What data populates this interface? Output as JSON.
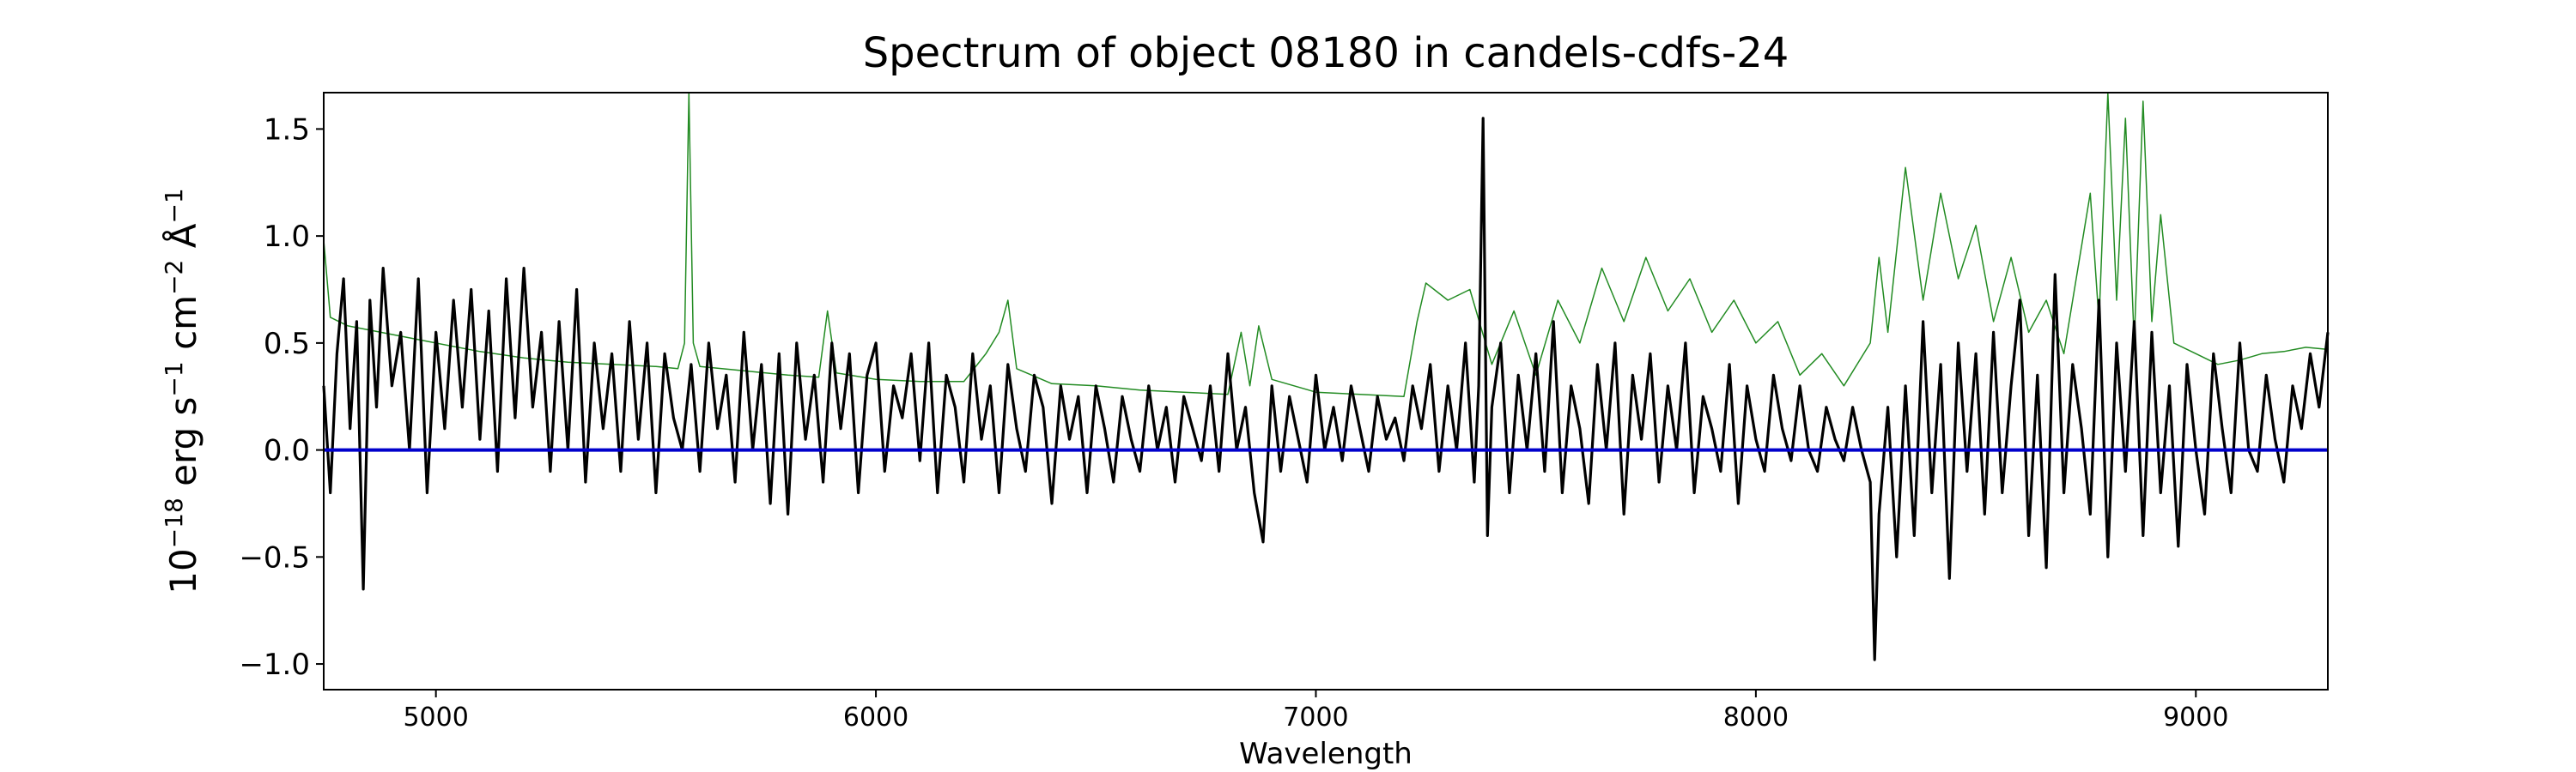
{
  "chart_data": {
    "type": "line",
    "title": "Spectrum of object 08180 in candels-cdfs-24",
    "xlabel": "Wavelength",
    "ylabel": {
      "prefix": "10",
      "exp": "−18",
      "unit1": " erg s",
      "exp2": "−1",
      "unit2": " cm",
      "exp3": "−2",
      "unit3": " Å",
      "exp4": "−1"
    },
    "xlim": [
      4745,
      9300
    ],
    "ylim": [
      -1.12,
      1.67
    ],
    "x_ticks": [
      5000,
      6000,
      7000,
      8000,
      9000
    ],
    "x_tick_labels": [
      "5000",
      "6000",
      "7000",
      "8000",
      "9000"
    ],
    "y_ticks": [
      1.5,
      1.0,
      0.5,
      0.0,
      -0.5,
      -1.0
    ],
    "y_tick_labels": [
      "1.5",
      "1.0",
      "0.5",
      "0.0",
      "−0.5",
      "−1.0"
    ],
    "grid": false,
    "colors": {
      "flux": "#000000",
      "error": "#228B22",
      "zero": "#0000cc"
    },
    "series": [
      {
        "key": "error",
        "color": "#228B22",
        "x": [
          4745,
          4760,
          4780,
          4800,
          4850,
          4900,
          5000,
          5100,
          5200,
          5300,
          5400,
          5500,
          5550,
          5565,
          5575,
          5585,
          5600,
          5700,
          5800,
          5870,
          5890,
          5910,
          6000,
          6100,
          6200,
          6250,
          6280,
          6300,
          6320,
          6400,
          6500,
          6600,
          6700,
          6800,
          6830,
          6850,
          6870,
          6900,
          7000,
          7100,
          7200,
          7230,
          7250,
          7300,
          7350,
          7400,
          7450,
          7500,
          7550,
          7600,
          7650,
          7700,
          7750,
          7800,
          7850,
          7900,
          7950,
          8000,
          8050,
          8100,
          8150,
          8200,
          8260,
          8280,
          8300,
          8340,
          8380,
          8420,
          8460,
          8500,
          8540,
          8580,
          8620,
          8660,
          8700,
          8760,
          8780,
          8800,
          8820,
          8840,
          8860,
          8880,
          8900,
          8920,
          8950,
          9000,
          9050,
          9100,
          9150,
          9200,
          9250,
          9300
        ],
        "y": [
          0.98,
          0.62,
          0.6,
          0.58,
          0.56,
          0.54,
          0.5,
          0.46,
          0.43,
          0.41,
          0.4,
          0.39,
          0.38,
          0.5,
          1.67,
          0.5,
          0.39,
          0.37,
          0.35,
          0.34,
          0.65,
          0.36,
          0.33,
          0.32,
          0.32,
          0.45,
          0.55,
          0.7,
          0.38,
          0.31,
          0.3,
          0.28,
          0.27,
          0.26,
          0.55,
          0.3,
          0.58,
          0.33,
          0.27,
          0.26,
          0.25,
          0.6,
          0.78,
          0.7,
          0.75,
          0.4,
          0.65,
          0.35,
          0.7,
          0.5,
          0.85,
          0.6,
          0.9,
          0.65,
          0.8,
          0.55,
          0.7,
          0.5,
          0.6,
          0.35,
          0.45,
          0.3,
          0.5,
          0.9,
          0.55,
          1.32,
          0.7,
          1.2,
          0.8,
          1.05,
          0.6,
          0.9,
          0.55,
          0.7,
          0.45,
          1.2,
          0.6,
          1.67,
          0.7,
          1.55,
          0.5,
          1.63,
          0.6,
          1.1,
          0.5,
          0.45,
          0.4,
          0.42,
          0.45,
          0.46,
          0.48,
          0.47
        ]
      },
      {
        "key": "flux",
        "color": "#000000",
        "x": [
          4745,
          4760,
          4775,
          4790,
          4805,
          4820,
          4835,
          4850,
          4865,
          4880,
          4900,
          4920,
          4940,
          4960,
          4980,
          5000,
          5020,
          5040,
          5060,
          5080,
          5100,
          5120,
          5140,
          5160,
          5180,
          5200,
          5220,
          5240,
          5260,
          5280,
          5300,
          5320,
          5340,
          5360,
          5380,
          5400,
          5420,
          5440,
          5460,
          5480,
          5500,
          5520,
          5540,
          5560,
          5580,
          5600,
          5620,
          5640,
          5660,
          5680,
          5700,
          5720,
          5740,
          5760,
          5780,
          5800,
          5820,
          5840,
          5860,
          5880,
          5900,
          5920,
          5940,
          5960,
          5980,
          6000,
          6020,
          6040,
          6060,
          6080,
          6100,
          6120,
          6140,
          6160,
          6180,
          6200,
          6220,
          6240,
          6260,
          6280,
          6300,
          6320,
          6340,
          6360,
          6380,
          6400,
          6420,
          6440,
          6460,
          6480,
          6500,
          6520,
          6540,
          6560,
          6580,
          6600,
          6620,
          6640,
          6660,
          6680,
          6700,
          6720,
          6740,
          6760,
          6780,
          6800,
          6820,
          6840,
          6860,
          6880,
          6900,
          6920,
          6940,
          6960,
          6980,
          7000,
          7020,
          7040,
          7060,
          7080,
          7100,
          7120,
          7140,
          7160,
          7180,
          7200,
          7220,
          7240,
          7260,
          7280,
          7300,
          7320,
          7340,
          7360,
          7370,
          7380,
          7390,
          7400,
          7420,
          7440,
          7460,
          7480,
          7500,
          7520,
          7540,
          7560,
          7580,
          7600,
          7620,
          7640,
          7660,
          7680,
          7700,
          7720,
          7740,
          7760,
          7780,
          7800,
          7820,
          7840,
          7860,
          7880,
          7900,
          7920,
          7940,
          7960,
          7980,
          8000,
          8020,
          8040,
          8060,
          8080,
          8100,
          8120,
          8140,
          8160,
          8180,
          8200,
          8220,
          8240,
          8260,
          8270,
          8280,
          8300,
          8320,
          8340,
          8360,
          8380,
          8400,
          8420,
          8440,
          8460,
          8480,
          8500,
          8520,
          8540,
          8560,
          8580,
          8600,
          8620,
          8640,
          8660,
          8680,
          8700,
          8720,
          8740,
          8760,
          8780,
          8800,
          8820,
          8840,
          8860,
          8880,
          8900,
          8920,
          8940,
          8960,
          8980,
          9000,
          9020,
          9040,
          9060,
          9080,
          9100,
          9120,
          9140,
          9160,
          9180,
          9200,
          9220,
          9240,
          9260,
          9280,
          9300
        ],
        "y": [
          0.3,
          -0.2,
          0.45,
          0.8,
          0.1,
          0.6,
          -0.65,
          0.7,
          0.2,
          0.85,
          0.3,
          0.55,
          0.0,
          0.8,
          -0.2,
          0.55,
          0.1,
          0.7,
          0.2,
          0.75,
          0.05,
          0.65,
          -0.1,
          0.8,
          0.15,
          0.85,
          0.2,
          0.55,
          -0.1,
          0.6,
          0.0,
          0.75,
          -0.15,
          0.5,
          0.1,
          0.45,
          -0.1,
          0.6,
          0.05,
          0.5,
          -0.2,
          0.45,
          0.15,
          0.0,
          0.4,
          -0.1,
          0.5,
          0.1,
          0.35,
          -0.15,
          0.55,
          0.0,
          0.4,
          -0.25,
          0.45,
          -0.3,
          0.5,
          0.05,
          0.35,
          -0.15,
          0.5,
          0.1,
          0.45,
          -0.2,
          0.35,
          0.5,
          -0.1,
          0.3,
          0.15,
          0.45,
          -0.05,
          0.5,
          -0.2,
          0.35,
          0.2,
          -0.15,
          0.45,
          0.05,
          0.3,
          -0.2,
          0.4,
          0.1,
          -0.1,
          0.35,
          0.2,
          -0.25,
          0.3,
          0.05,
          0.25,
          -0.2,
          0.3,
          0.1,
          -0.15,
          0.25,
          0.05,
          -0.1,
          0.3,
          0.0,
          0.2,
          -0.15,
          0.25,
          0.1,
          -0.05,
          0.3,
          -0.1,
          0.45,
          0.0,
          0.2,
          -0.2,
          -0.43,
          0.3,
          -0.1,
          0.25,
          0.05,
          -0.15,
          0.35,
          0.0,
          0.2,
          -0.05,
          0.3,
          0.1,
          -0.1,
          0.25,
          0.05,
          0.15,
          -0.05,
          0.3,
          0.1,
          0.4,
          -0.1,
          0.3,
          0.0,
          0.5,
          -0.15,
          0.3,
          1.55,
          -0.4,
          0.2,
          0.5,
          -0.2,
          0.35,
          0.0,
          0.45,
          -0.1,
          0.6,
          -0.2,
          0.3,
          0.1,
          -0.25,
          0.4,
          0.0,
          0.5,
          -0.3,
          0.35,
          0.05,
          0.45,
          -0.15,
          0.3,
          0.0,
          0.5,
          -0.2,
          0.25,
          0.1,
          -0.1,
          0.4,
          -0.25,
          0.3,
          0.05,
          -0.1,
          0.35,
          0.1,
          -0.05,
          0.3,
          0.0,
          -0.1,
          0.2,
          0.05,
          -0.05,
          0.2,
          0.0,
          -0.15,
          -0.98,
          -0.3,
          0.2,
          -0.5,
          0.3,
          -0.4,
          0.6,
          -0.2,
          0.4,
          -0.6,
          0.5,
          -0.1,
          0.45,
          -0.3,
          0.55,
          -0.2,
          0.3,
          0.7,
          -0.4,
          0.35,
          -0.55,
          0.82,
          -0.2,
          0.4,
          0.1,
          -0.3,
          0.7,
          -0.5,
          0.5,
          -0.1,
          0.6,
          -0.4,
          0.55,
          -0.2,
          0.3,
          -0.45,
          0.4,
          0.0,
          -0.3,
          0.45,
          0.1,
          -0.2,
          0.5,
          0.0,
          -0.1,
          0.35,
          0.05,
          -0.15,
          0.3,
          0.1,
          0.45,
          0.2,
          0.55
        ]
      },
      {
        "key": "zero",
        "color": "#0000cc",
        "x": [
          4745,
          9300
        ],
        "y": [
          0.0,
          0.0
        ]
      }
    ]
  }
}
